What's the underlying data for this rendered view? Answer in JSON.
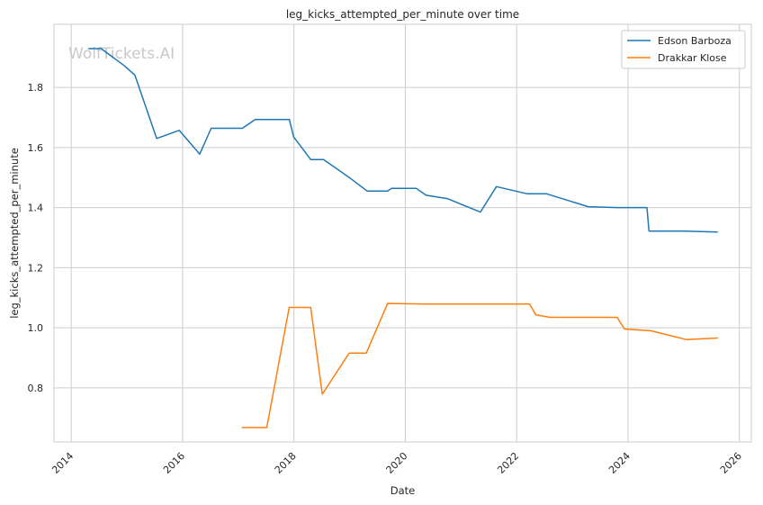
{
  "chart_data": {
    "type": "line",
    "title": "leg_kicks_attempted_per_minute over time",
    "xlabel": "Date",
    "ylabel": "leg_kicks_attempted_per_minute",
    "watermark": "WolfTickets.AI",
    "x_ticks": [
      "2014",
      "2016",
      "2018",
      "2020",
      "2022",
      "2024",
      "2026"
    ],
    "y_ticks": [
      "0.8",
      "1.0",
      "1.2",
      "1.4",
      "1.6",
      "1.8"
    ],
    "xlim": [
      "2013-09-10",
      "2026-03-20"
    ],
    "ylim": [
      0.62,
      2.01
    ],
    "grid": true,
    "legend_position": "top-right",
    "series": [
      {
        "name": "Edson Barboza",
        "color": "#1f77b4",
        "points": [
          [
            "2014-04-26",
            1.929
          ],
          [
            "2014-07-16",
            1.929
          ],
          [
            "2014-12-13",
            1.873
          ],
          [
            "2015-02-22",
            1.841
          ],
          [
            "2015-07-15",
            1.63
          ],
          [
            "2015-12-10",
            1.657
          ],
          [
            "2016-04-23",
            1.578
          ],
          [
            "2016-07-07",
            1.664
          ],
          [
            "2017-01-28",
            1.664
          ],
          [
            "2017-04-22",
            1.693
          ],
          [
            "2017-12-02",
            1.693
          ],
          [
            "2017-12-30",
            1.635
          ],
          [
            "2018-04-21",
            1.56
          ],
          [
            "2018-07-14",
            1.56
          ],
          [
            "2018-12-30",
            1.5
          ],
          [
            "2019-04-27",
            1.455
          ],
          [
            "2019-09-07",
            1.455
          ],
          [
            "2019-10-01",
            1.464
          ],
          [
            "2020-03-14",
            1.464
          ],
          [
            "2020-05-16",
            1.441
          ],
          [
            "2020-10-03",
            1.43
          ],
          [
            "2021-05-08",
            1.385
          ],
          [
            "2021-08-21",
            1.47
          ],
          [
            "2022-03-12",
            1.446
          ],
          [
            "2022-07-16",
            1.446
          ],
          [
            "2023-04-15",
            1.403
          ],
          [
            "2023-10-21",
            1.4
          ],
          [
            "2024-05-04",
            1.4
          ],
          [
            "2024-05-18",
            1.322
          ],
          [
            "2025-01-11",
            1.322
          ],
          [
            "2025-08-09",
            1.319
          ]
        ]
      },
      {
        "name": "Drakkar Klose",
        "color": "#ff7f0e",
        "points": [
          [
            "2017-01-28",
            0.668
          ],
          [
            "2017-07-07",
            0.668
          ],
          [
            "2017-12-01",
            1.068
          ],
          [
            "2018-04-21",
            1.068
          ],
          [
            "2018-07-06",
            0.779
          ],
          [
            "2018-12-29",
            0.916
          ],
          [
            "2019-04-20",
            0.916
          ],
          [
            "2019-09-07",
            1.081
          ],
          [
            "2020-05-16",
            1.079
          ],
          [
            "2022-03-26",
            1.079
          ],
          [
            "2022-05-07",
            1.043
          ],
          [
            "2022-08-06",
            1.035
          ],
          [
            "2023-10-21",
            1.035
          ],
          [
            "2023-12-09",
            0.996
          ],
          [
            "2024-06-01",
            0.99
          ],
          [
            "2025-01-18",
            0.961
          ],
          [
            "2025-08-09",
            0.966
          ]
        ]
      }
    ]
  }
}
